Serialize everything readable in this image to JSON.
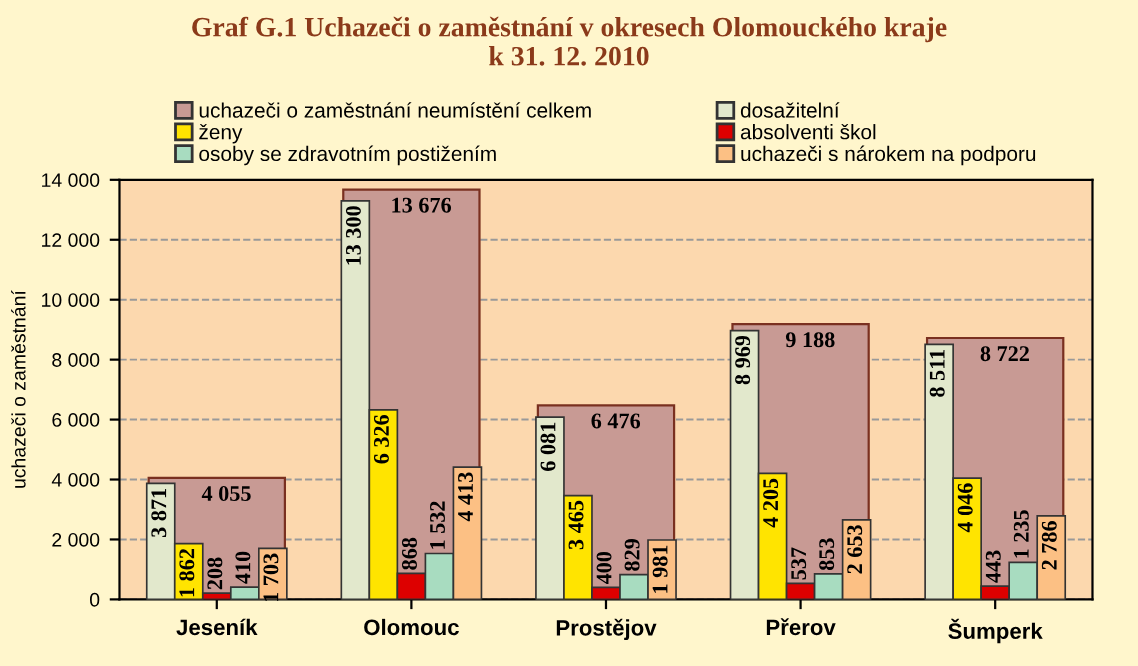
{
  "chart_data": {
    "type": "bar",
    "title": "Graf G.1 Uchazeči o zaměstnání v okresech Olomouckého kraje\nk 31. 12. 2010",
    "ylabel": "uchazeči o zaměstnání",
    "categories": [
      "Jeseník",
      "Olomouc",
      "Prostějov",
      "Přerov",
      "Šumperk"
    ],
    "series": [
      {
        "name": "uchazeči o zaměstnání neumístění celkem",
        "color": "#c89a94",
        "values": [
          4055,
          13676,
          6476,
          9188,
          8722
        ],
        "value_labels": [
          "4 055",
          "13 676",
          "6 476",
          "9 188",
          "8 722"
        ]
      },
      {
        "name": "dosažitelní",
        "color": "#e2e8cc",
        "values": [
          3871,
          13300,
          6081,
          8969,
          8511
        ],
        "value_labels": [
          "3 871",
          "13 300",
          "6 081",
          "8 969",
          "8 511"
        ]
      },
      {
        "name": "ženy",
        "color": "#ffe400",
        "values": [
          1862,
          6326,
          3465,
          4205,
          4046
        ],
        "value_labels": [
          "1 862",
          "6 326",
          "3 465",
          "4 205",
          "4 046"
        ]
      },
      {
        "name": "absolventi škol",
        "color": "#dd0000",
        "values": [
          208,
          868,
          400,
          537,
          443
        ],
        "value_labels": [
          "208",
          "868",
          "400",
          "537",
          "443"
        ]
      },
      {
        "name": "osoby se zdravotním postižením",
        "color": "#a8dcc0",
        "values": [
          410,
          1532,
          829,
          853,
          1235
        ],
        "value_labels": [
          "410",
          "1 532",
          "829",
          "853",
          "1 235"
        ]
      },
      {
        "name": "uchazeči s nárokem na podporu",
        "color": "#fcc084",
        "values": [
          1703,
          4413,
          1981,
          2653,
          2786
        ],
        "value_labels": [
          "1 703",
          "4 413",
          "1 981",
          "2 653",
          "2 786"
        ]
      }
    ],
    "ylim": [
      0,
      14000
    ],
    "yticks": [
      {
        "value": 0,
        "label": "0"
      },
      {
        "value": 2000,
        "label": "2 000"
      },
      {
        "value": 4000,
        "label": "4 000"
      },
      {
        "value": 6000,
        "label": "6 000"
      },
      {
        "value": 8000,
        "label": "8 000"
      },
      {
        "value": 10000,
        "label": "10 000"
      },
      {
        "value": 12000,
        "label": "12 000"
      },
      {
        "value": 14000,
        "label": "14 000"
      }
    ],
    "grid": "y",
    "legend": "top"
  }
}
